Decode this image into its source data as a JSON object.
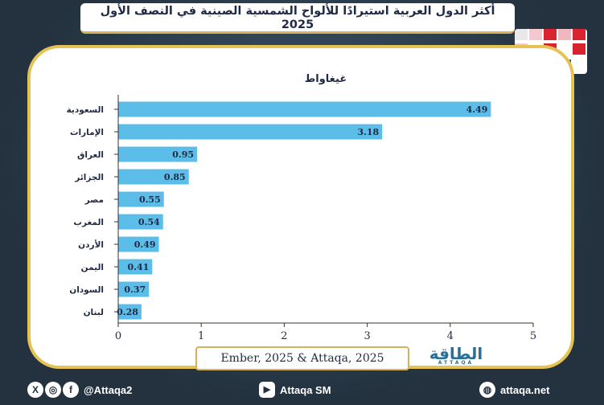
{
  "title": {
    "line1": "أكثر الدول العربية استيرادًا للألواح الشمسية الصينية في النصف الأول",
    "line2": "2025"
  },
  "chart_data": {
    "type": "bar",
    "orientation": "horizontal",
    "unit_label": "غيغاواط",
    "categories": [
      "السعودية",
      "الإمارات",
      "العراق",
      "الجزائر",
      "مصر",
      "المغرب",
      "الأردن",
      "اليمن",
      "السودان",
      "لبنان"
    ],
    "values": [
      4.49,
      3.18,
      0.95,
      0.85,
      0.55,
      0.54,
      0.49,
      0.41,
      0.37,
      0.28
    ],
    "value_labels": [
      "4.49",
      "3.18",
      "0.95",
      "0.85",
      "0.55",
      "0.54",
      "0.49",
      "0.41",
      "0.37",
      "0.28"
    ],
    "xlim": [
      0,
      5
    ],
    "xticks": [
      "0",
      "1",
      "2",
      "3",
      "4",
      "5"
    ],
    "bar_color": "#5dbde9",
    "grid": false
  },
  "source": "Ember, 2025 & Attaqa, 2025",
  "brand": {
    "name": "الطاقة",
    "sub": "ATTAQA"
  },
  "footer": {
    "handle": "@Attaqa2",
    "youtube": "Attaqa SM",
    "website": "attaqa.net"
  },
  "colors": {
    "accent": "#e4c354",
    "bar": "#5dbde9",
    "text": "#1f2a44"
  }
}
